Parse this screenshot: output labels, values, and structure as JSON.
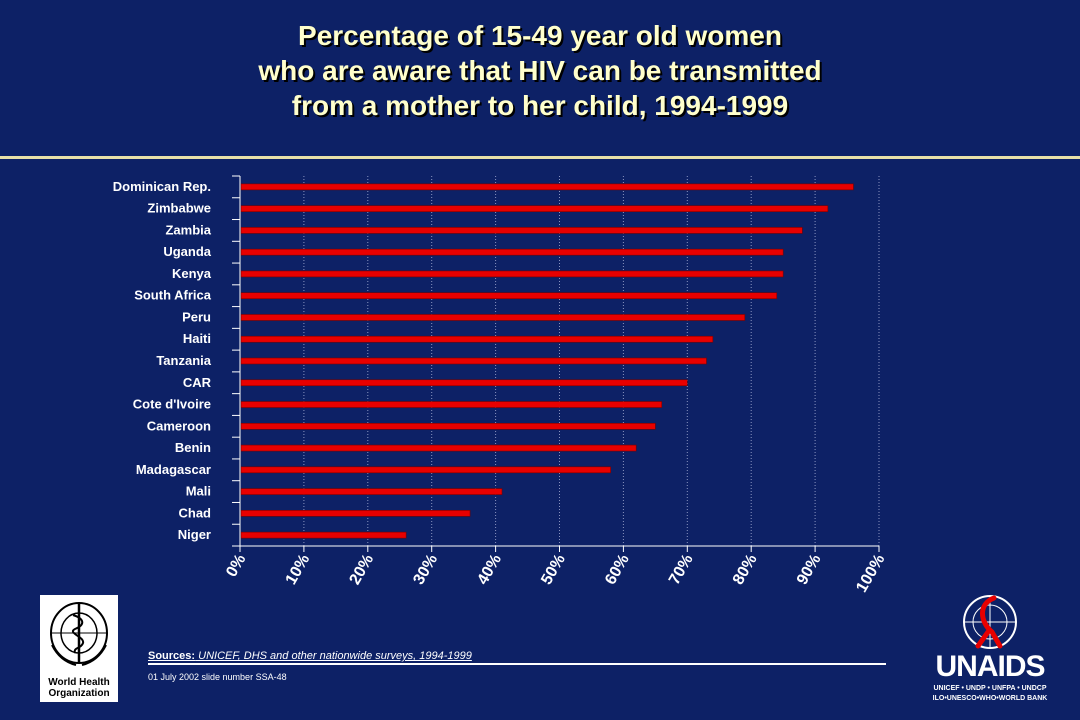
{
  "slide": {
    "title_lines": [
      "Percentage of 15-49 year old  women",
      "who are aware that HIV can be transmitted",
      "from a mother to her child, 1994-1999"
    ],
    "sources_label": "Sources:",
    "sources_text": " UNICEF, DHS and other nationwide surveys, 1994-1999",
    "footer_note": "01 July 2002 slide number SSA-48",
    "who_logo_text": "World Health Organization",
    "unaids_wordmark": "UNAIDS",
    "unaids_sub1": "UNICEF • UNDP • UNFPA • UNDCP",
    "unaids_sub2": "ILO•UNESCO•WHO•WORLD BANK",
    "colors": {
      "background": "#0d2166",
      "title": "#ffffcc",
      "bar": "#e80000",
      "text": "#ffffff"
    }
  },
  "chart_data": {
    "type": "bar",
    "orientation": "horizontal",
    "title": "Percentage of 15-49 year old  women who are aware that HIV can be transmitted from a mother to her child, 1994-1999",
    "categories": [
      "Dominican Rep.",
      "Zimbabwe",
      "Zambia",
      "Uganda",
      "Kenya",
      "South Africa",
      "Peru",
      "Haiti",
      "Tanzania",
      "CAR",
      "Cote d'Ivoire",
      "Cameroon",
      "Benin",
      "Madagascar",
      "Mali",
      "Chad",
      "Niger"
    ],
    "values": [
      96,
      92,
      88,
      85,
      85,
      84,
      79,
      74,
      73,
      70,
      66,
      65,
      62,
      58,
      41,
      36,
      26
    ],
    "xlim": [
      0,
      100
    ],
    "xticks": [
      "0%",
      "10%",
      "20%",
      "30%",
      "40%",
      "50%",
      "60%",
      "70%",
      "80%",
      "90%",
      "100%"
    ],
    "grid": "vertical dotted at 10% intervals",
    "legend": "none"
  }
}
